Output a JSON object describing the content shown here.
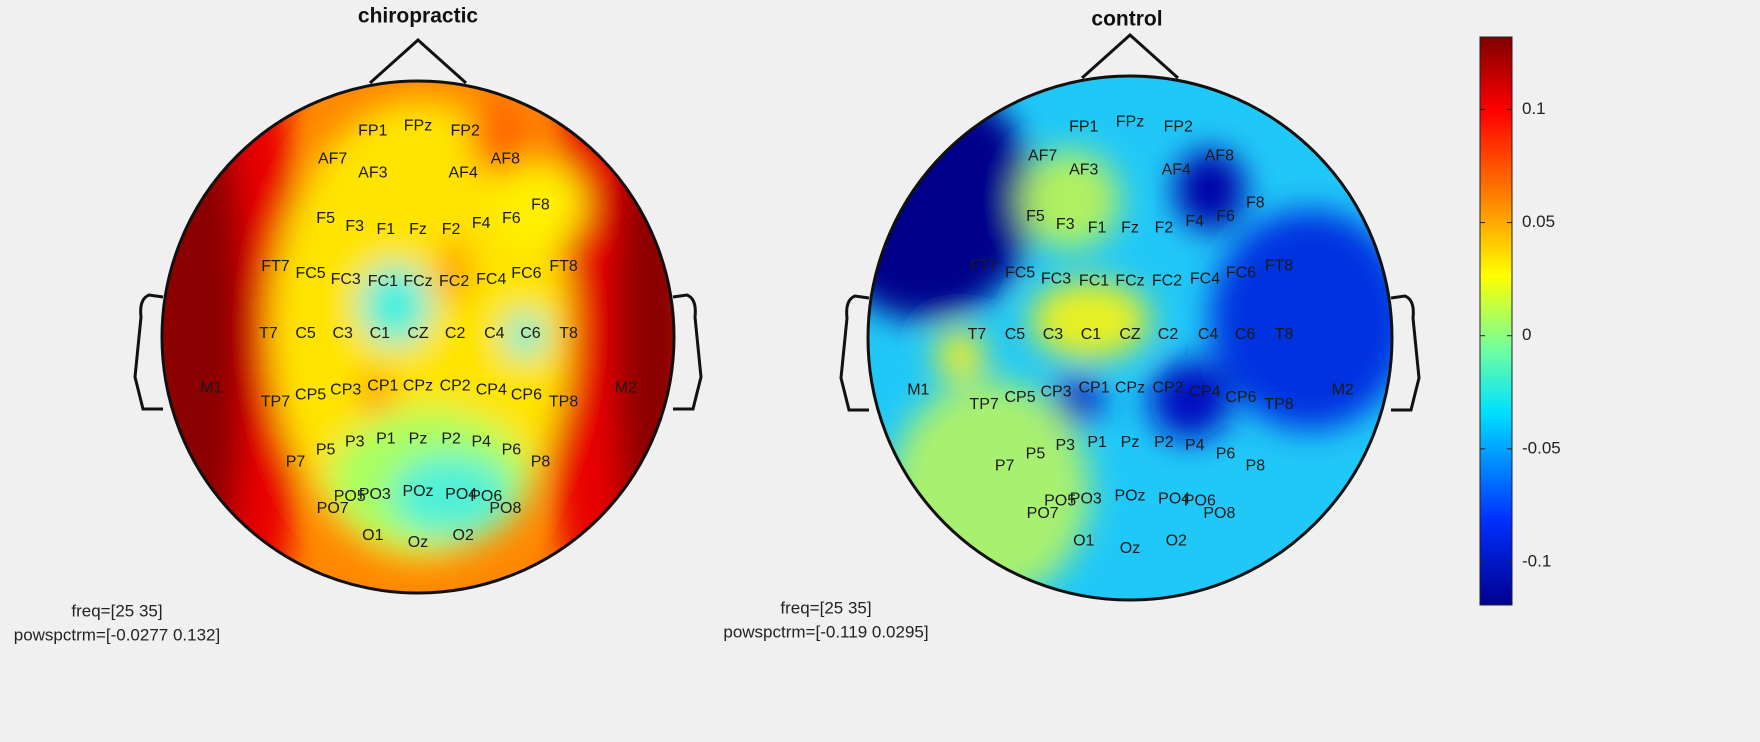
{
  "chart_data": [
    {
      "type": "topoplot",
      "title": "chiropractic",
      "electrodes": [
        "FP1",
        "FPz",
        "FP2",
        "AF7",
        "AF3",
        "AF4",
        "AF8",
        "F5",
        "F3",
        "F1",
        "Fz",
        "F2",
        "F4",
        "F6",
        "F8",
        "FT7",
        "FC5",
        "FC3",
        "FC1",
        "FCz",
        "FC2",
        "FC4",
        "FC6",
        "FT8",
        "T7",
        "C5",
        "C3",
        "C1",
        "CZ",
        "C2",
        "C4",
        "C6",
        "T8",
        "M1",
        "TP7",
        "CP5",
        "CP3",
        "CP1",
        "CPz",
        "CP2",
        "CP4",
        "CP6",
        "TP8",
        "M2",
        "P7",
        "P5",
        "P3",
        "P1",
        "Pz",
        "P2",
        "P4",
        "P6",
        "P8",
        "PO7",
        "PO5",
        "PO3",
        "POz",
        "PO4",
        "PO6",
        "PO8",
        "O1",
        "Oz",
        "O2"
      ],
      "annotations": [
        "freq=[25 35]",
        "powspctrm=[-0.0277 0.132]"
      ]
    },
    {
      "type": "topoplot",
      "title": "control",
      "electrodes": [
        "FP1",
        "FPz",
        "FP2",
        "AF7",
        "AF3",
        "AF4",
        "AF8",
        "F5",
        "F3",
        "F1",
        "Fz",
        "F2",
        "F4",
        "F6",
        "F8",
        "FT7",
        "FC5",
        "FC3",
        "FC1",
        "FCz",
        "FC2",
        "FC4",
        "FC6",
        "FT8",
        "T7",
        "C5",
        "C3",
        "C1",
        "CZ",
        "C2",
        "C4",
        "C6",
        "T8",
        "M1",
        "TP7",
        "CP5",
        "CP3",
        "CP1",
        "CPz",
        "CP2",
        "CP4",
        "CP6",
        "TP8",
        "M2",
        "P7",
        "P5",
        "P3",
        "P1",
        "Pz",
        "P2",
        "P4",
        "P6",
        "P8",
        "PO7",
        "PO5",
        "PO3",
        "POz",
        "PO4",
        "PO6",
        "PO8",
        "O1",
        "Oz",
        "O2"
      ],
      "annotations": [
        "freq=[25 35]",
        "powspctrm=[-0.119 0.0295]"
      ]
    },
    {
      "type": "colorbar",
      "ylim": [
        -0.119,
        0.132
      ],
      "yticks": [
        -0.1,
        -0.05,
        0,
        0.05,
        0.1
      ]
    }
  ]
}
